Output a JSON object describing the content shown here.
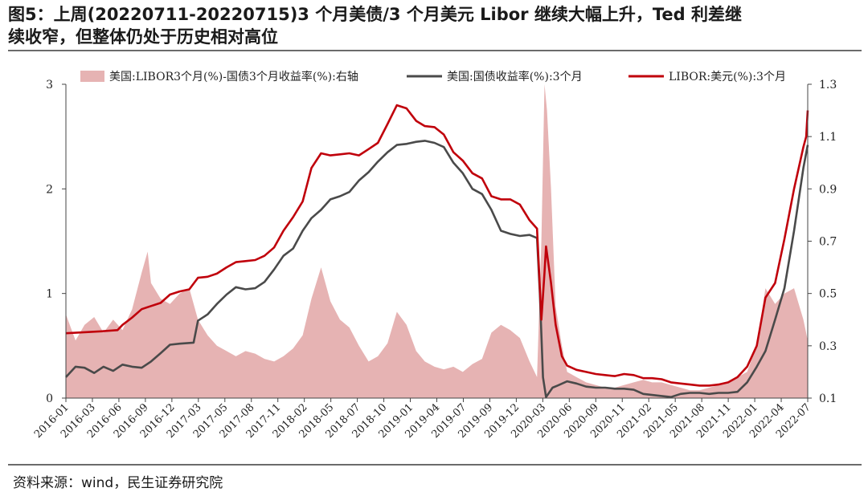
{
  "title": {
    "line1": "图5：上周(20220711-20220715)3 个月美债/3 个月美元 Libor 继续大幅上升，Ted 利差继",
    "line2": "续收窄，但整体仍处于历史相对高位"
  },
  "source": "资料来源：wind，民生证券研究院",
  "colors": {
    "spread_fill": "#e6b3b3",
    "treasury_line": "#4a4a4a",
    "libor_line": "#c0000b"
  },
  "chart_data": {
    "type": "line",
    "legend": [
      {
        "name": "美国:LIBOR3个月(%)-国债3个月收益率(%):右轴",
        "kind": "area",
        "color": "#e6b3b3"
      },
      {
        "name": "美国:国债收益率(%):3个月",
        "kind": "line",
        "color": "#4a4a4a"
      },
      {
        "name": "LIBOR:美元(%):3个月",
        "kind": "line",
        "color": "#c0000b"
      }
    ],
    "legend_position": "top",
    "x_ticks": [
      "2016-01",
      "2016-03",
      "2016-06",
      "2016-09",
      "2016-12",
      "2017-03",
      "2017-05",
      "2017-08",
      "2017-11",
      "2018-02",
      "2018-05",
      "2018-07",
      "2018-10",
      "2019-01",
      "2019-04",
      "2019-07",
      "2019-09",
      "2019-12",
      "2020-03",
      "2020-06",
      "2020-09",
      "2020-11",
      "2021-02",
      "2021-05",
      "2021-08",
      "2021-11",
      "2022-01",
      "2022-04",
      "2022-07"
    ],
    "x_range": [
      "2016-01-01",
      "2022-07-15"
    ],
    "y_left": {
      "range": [
        0,
        3
      ],
      "ticks": [
        "0",
        "1",
        "2",
        "3"
      ]
    },
    "y_right": {
      "range": [
        0.1,
        1.3
      ],
      "ticks": [
        "0.1",
        "0.3",
        "0.5",
        "0.7",
        "0.9",
        "1.1",
        "1.3"
      ]
    },
    "grid": false,
    "series": [
      {
        "name": "美国:国债收益率(%):3个月",
        "axis": "left",
        "points": [
          [
            "2016-01-01",
            0.2
          ],
          [
            "2016-02-01",
            0.3
          ],
          [
            "2016-03-01",
            0.29
          ],
          [
            "2016-04-01",
            0.24
          ],
          [
            "2016-05-01",
            0.3
          ],
          [
            "2016-06-01",
            0.26
          ],
          [
            "2016-07-01",
            0.32
          ],
          [
            "2016-08-01",
            0.3
          ],
          [
            "2016-09-01",
            0.29
          ],
          [
            "2016-10-01",
            0.35
          ],
          [
            "2016-11-01",
            0.43
          ],
          [
            "2016-12-01",
            0.51
          ],
          [
            "2017-01-01",
            0.52
          ],
          [
            "2017-02-15",
            0.53
          ],
          [
            "2017-03-01",
            0.74
          ],
          [
            "2017-04-01",
            0.8
          ],
          [
            "2017-05-01",
            0.9
          ],
          [
            "2017-06-01",
            0.99
          ],
          [
            "2017-07-01",
            1.06
          ],
          [
            "2017-08-01",
            1.04
          ],
          [
            "2017-09-01",
            1.05
          ],
          [
            "2017-10-01",
            1.11
          ],
          [
            "2017-11-01",
            1.23
          ],
          [
            "2017-12-01",
            1.36
          ],
          [
            "2018-01-01",
            1.43
          ],
          [
            "2018-02-01",
            1.6
          ],
          [
            "2018-03-01",
            1.72
          ],
          [
            "2018-04-01",
            1.8
          ],
          [
            "2018-05-01",
            1.9
          ],
          [
            "2018-06-01",
            1.93
          ],
          [
            "2018-07-01",
            1.97
          ],
          [
            "2018-08-01",
            2.08
          ],
          [
            "2018-09-01",
            2.16
          ],
          [
            "2018-10-01",
            2.26
          ],
          [
            "2018-11-01",
            2.35
          ],
          [
            "2018-12-01",
            2.42
          ],
          [
            "2019-01-01",
            2.43
          ],
          [
            "2019-02-01",
            2.45
          ],
          [
            "2019-03-01",
            2.46
          ],
          [
            "2019-04-01",
            2.44
          ],
          [
            "2019-05-01",
            2.4
          ],
          [
            "2019-06-01",
            2.25
          ],
          [
            "2019-07-01",
            2.15
          ],
          [
            "2019-08-01",
            2.0
          ],
          [
            "2019-09-01",
            1.95
          ],
          [
            "2019-10-01",
            1.8
          ],
          [
            "2019-11-01",
            1.6
          ],
          [
            "2019-12-01",
            1.57
          ],
          [
            "2020-01-01",
            1.55
          ],
          [
            "2020-02-01",
            1.56
          ],
          [
            "2020-02-25",
            1.53
          ],
          [
            "2020-03-05",
            1.0
          ],
          [
            "2020-03-15",
            0.2
          ],
          [
            "2020-03-25",
            0.01
          ],
          [
            "2020-04-15",
            0.1
          ],
          [
            "2020-05-01",
            0.12
          ],
          [
            "2020-06-01",
            0.16
          ],
          [
            "2020-07-01",
            0.14
          ],
          [
            "2020-08-01",
            0.11
          ],
          [
            "2020-09-01",
            0.1
          ],
          [
            "2020-10-01",
            0.1
          ],
          [
            "2020-11-01",
            0.09
          ],
          [
            "2020-12-01",
            0.09
          ],
          [
            "2021-01-01",
            0.08
          ],
          [
            "2021-02-01",
            0.04
          ],
          [
            "2021-03-01",
            0.03
          ],
          [
            "2021-04-01",
            0.02
          ],
          [
            "2021-05-01",
            0.01
          ],
          [
            "2021-06-01",
            0.04
          ],
          [
            "2021-07-01",
            0.05
          ],
          [
            "2021-08-01",
            0.05
          ],
          [
            "2021-09-01",
            0.04
          ],
          [
            "2021-10-01",
            0.05
          ],
          [
            "2021-11-01",
            0.05
          ],
          [
            "2021-12-01",
            0.06
          ],
          [
            "2022-01-01",
            0.15
          ],
          [
            "2022-02-01",
            0.3
          ],
          [
            "2022-03-01",
            0.45
          ],
          [
            "2022-04-01",
            0.75
          ],
          [
            "2022-05-01",
            1.05
          ],
          [
            "2022-06-01",
            1.6
          ],
          [
            "2022-07-01",
            2.2
          ],
          [
            "2022-07-15",
            2.42
          ]
        ]
      },
      {
        "name": "LIBOR:美元(%):3个月",
        "axis": "left",
        "points": [
          [
            "2016-01-01",
            0.62
          ],
          [
            "2016-03-01",
            0.63
          ],
          [
            "2016-05-01",
            0.64
          ],
          [
            "2016-06-15",
            0.65
          ],
          [
            "2016-07-01",
            0.7
          ],
          [
            "2016-08-01",
            0.77
          ],
          [
            "2016-09-01",
            0.85
          ],
          [
            "2016-10-01",
            0.88
          ],
          [
            "2016-11-01",
            0.91
          ],
          [
            "2016-12-01",
            0.99
          ],
          [
            "2017-01-01",
            1.02
          ],
          [
            "2017-02-01",
            1.04
          ],
          [
            "2017-03-01",
            1.15
          ],
          [
            "2017-04-01",
            1.16
          ],
          [
            "2017-05-01",
            1.19
          ],
          [
            "2017-06-01",
            1.25
          ],
          [
            "2017-07-01",
            1.3
          ],
          [
            "2017-08-01",
            1.31
          ],
          [
            "2017-09-01",
            1.32
          ],
          [
            "2017-10-01",
            1.36
          ],
          [
            "2017-11-01",
            1.44
          ],
          [
            "2017-12-01",
            1.6
          ],
          [
            "2018-01-01",
            1.73
          ],
          [
            "2018-02-01",
            1.88
          ],
          [
            "2018-03-01",
            2.2
          ],
          [
            "2018-04-01",
            2.34
          ],
          [
            "2018-05-01",
            2.32
          ],
          [
            "2018-06-01",
            2.33
          ],
          [
            "2018-07-01",
            2.34
          ],
          [
            "2018-08-01",
            2.32
          ],
          [
            "2018-09-01",
            2.38
          ],
          [
            "2018-10-01",
            2.44
          ],
          [
            "2018-11-01",
            2.62
          ],
          [
            "2018-12-01",
            2.8
          ],
          [
            "2019-01-01",
            2.77
          ],
          [
            "2019-02-01",
            2.65
          ],
          [
            "2019-03-01",
            2.6
          ],
          [
            "2019-04-01",
            2.59
          ],
          [
            "2019-05-01",
            2.52
          ],
          [
            "2019-06-01",
            2.35
          ],
          [
            "2019-07-01",
            2.27
          ],
          [
            "2019-08-01",
            2.15
          ],
          [
            "2019-09-01",
            2.1
          ],
          [
            "2019-10-01",
            1.93
          ],
          [
            "2019-11-01",
            1.9
          ],
          [
            "2019-12-01",
            1.9
          ],
          [
            "2020-01-01",
            1.85
          ],
          [
            "2020-02-01",
            1.7
          ],
          [
            "2020-02-25",
            1.62
          ],
          [
            "2020-03-10",
            0.75
          ],
          [
            "2020-03-20",
            1.2
          ],
          [
            "2020-03-25",
            1.45
          ],
          [
            "2020-04-10",
            1.1
          ],
          [
            "2020-04-25",
            0.7
          ],
          [
            "2020-05-15",
            0.4
          ],
          [
            "2020-06-01",
            0.31
          ],
          [
            "2020-07-01",
            0.27
          ],
          [
            "2020-08-01",
            0.25
          ],
          [
            "2020-09-01",
            0.23
          ],
          [
            "2020-10-01",
            0.22
          ],
          [
            "2020-11-01",
            0.21
          ],
          [
            "2020-12-01",
            0.23
          ],
          [
            "2021-01-01",
            0.22
          ],
          [
            "2021-02-01",
            0.19
          ],
          [
            "2021-03-01",
            0.19
          ],
          [
            "2021-04-01",
            0.18
          ],
          [
            "2021-05-01",
            0.15
          ],
          [
            "2021-06-01",
            0.14
          ],
          [
            "2021-07-01",
            0.13
          ],
          [
            "2021-08-01",
            0.12
          ],
          [
            "2021-09-01",
            0.12
          ],
          [
            "2021-10-01",
            0.13
          ],
          [
            "2021-11-01",
            0.15
          ],
          [
            "2021-12-01",
            0.2
          ],
          [
            "2022-01-01",
            0.3
          ],
          [
            "2022-02-01",
            0.5
          ],
          [
            "2022-03-01",
            0.96
          ],
          [
            "2022-04-01",
            1.1
          ],
          [
            "2022-05-01",
            1.52
          ],
          [
            "2022-06-01",
            2.0
          ],
          [
            "2022-07-01",
            2.4
          ],
          [
            "2022-07-10",
            2.5
          ],
          [
            "2022-07-15",
            2.75
          ]
        ]
      },
      {
        "name": "美国:LIBOR3个月(%)-国债3个月收益率(%):右轴",
        "axis": "right",
        "points": [
          [
            "2016-01-01",
            0.42
          ],
          [
            "2016-02-01",
            0.32
          ],
          [
            "2016-03-01",
            0.38
          ],
          [
            "2016-04-01",
            0.41
          ],
          [
            "2016-05-01",
            0.35
          ],
          [
            "2016-06-01",
            0.4
          ],
          [
            "2016-07-01",
            0.36
          ],
          [
            "2016-08-01",
            0.44
          ],
          [
            "2016-09-01",
            0.58
          ],
          [
            "2016-09-20",
            0.66
          ],
          [
            "2016-10-01",
            0.54
          ],
          [
            "2016-11-01",
            0.48
          ],
          [
            "2016-12-01",
            0.46
          ],
          [
            "2017-01-01",
            0.5
          ],
          [
            "2017-02-01",
            0.52
          ],
          [
            "2017-03-01",
            0.4
          ],
          [
            "2017-04-01",
            0.34
          ],
          [
            "2017-05-01",
            0.3
          ],
          [
            "2017-06-01",
            0.28
          ],
          [
            "2017-07-01",
            0.26
          ],
          [
            "2017-08-01",
            0.28
          ],
          [
            "2017-09-01",
            0.27
          ],
          [
            "2017-10-01",
            0.25
          ],
          [
            "2017-11-01",
            0.24
          ],
          [
            "2017-12-01",
            0.26
          ],
          [
            "2018-01-01",
            0.29
          ],
          [
            "2018-02-01",
            0.34
          ],
          [
            "2018-03-01",
            0.48
          ],
          [
            "2018-04-01",
            0.6
          ],
          [
            "2018-05-01",
            0.47
          ],
          [
            "2018-06-01",
            0.4
          ],
          [
            "2018-07-01",
            0.37
          ],
          [
            "2018-08-01",
            0.3
          ],
          [
            "2018-09-01",
            0.24
          ],
          [
            "2018-10-01",
            0.26
          ],
          [
            "2018-11-01",
            0.31
          ],
          [
            "2018-12-01",
            0.43
          ],
          [
            "2019-01-01",
            0.38
          ],
          [
            "2019-02-01",
            0.28
          ],
          [
            "2019-03-01",
            0.24
          ],
          [
            "2019-04-01",
            0.22
          ],
          [
            "2019-05-01",
            0.21
          ],
          [
            "2019-06-01",
            0.22
          ],
          [
            "2019-07-01",
            0.2
          ],
          [
            "2019-08-01",
            0.23
          ],
          [
            "2019-09-01",
            0.25
          ],
          [
            "2019-10-01",
            0.35
          ],
          [
            "2019-11-01",
            0.38
          ],
          [
            "2019-12-01",
            0.36
          ],
          [
            "2020-01-01",
            0.33
          ],
          [
            "2020-02-01",
            0.24
          ],
          [
            "2020-02-25",
            0.18
          ],
          [
            "2020-03-10",
            0.7
          ],
          [
            "2020-03-20",
            1.3
          ],
          [
            "2020-03-28",
            1.2
          ],
          [
            "2020-04-10",
            0.9
          ],
          [
            "2020-04-25",
            0.45
          ],
          [
            "2020-05-15",
            0.3
          ],
          [
            "2020-06-01",
            0.2
          ],
          [
            "2020-07-01",
            0.18
          ],
          [
            "2020-08-01",
            0.16
          ],
          [
            "2020-09-01",
            0.15
          ],
          [
            "2020-10-01",
            0.14
          ],
          [
            "2020-11-01",
            0.14
          ],
          [
            "2020-12-01",
            0.15
          ],
          [
            "2021-01-01",
            0.16
          ],
          [
            "2021-02-01",
            0.17
          ],
          [
            "2021-03-01",
            0.16
          ],
          [
            "2021-04-01",
            0.16
          ],
          [
            "2021-05-01",
            0.15
          ],
          [
            "2021-06-01",
            0.14
          ],
          [
            "2021-07-01",
            0.13
          ],
          [
            "2021-08-01",
            0.13
          ],
          [
            "2021-09-01",
            0.14
          ],
          [
            "2021-10-01",
            0.15
          ],
          [
            "2021-11-01",
            0.16
          ],
          [
            "2021-12-01",
            0.18
          ],
          [
            "2022-01-01",
            0.2
          ],
          [
            "2022-02-01",
            0.3
          ],
          [
            "2022-03-01",
            0.52
          ],
          [
            "2022-04-01",
            0.46
          ],
          [
            "2022-05-01",
            0.5
          ],
          [
            "2022-06-01",
            0.52
          ],
          [
            "2022-07-01",
            0.4
          ],
          [
            "2022-07-15",
            0.32
          ]
        ]
      }
    ]
  }
}
